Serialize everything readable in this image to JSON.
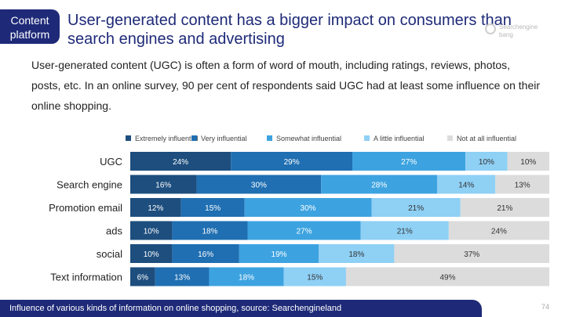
{
  "tag": {
    "label": "Content platform"
  },
  "title": "User-generated content has a bigger impact on consumers than search engines and advertising",
  "intro": "User-generated content (UGC) is often a form of word of mouth, including ratings, reviews, photos, posts, etc. In an online survey, 90 per cent of respondents said UGC had at least some influence on their online shopping.",
  "watermark": {
    "text": "Searchengine bang",
    "icon": "logo-ring-icon"
  },
  "footer": {
    "caption": "Influence of various kinds of information on online shopping, source: Searchengineland"
  },
  "page_number": "74",
  "chart_data": {
    "type": "bar",
    "orientation": "horizontal",
    "stacked": true,
    "categories": [
      "UGC",
      "Search engine",
      "Promotion email",
      "ads",
      "social",
      "Text information"
    ],
    "series": [
      {
        "name": "Extremely influential",
        "color": "#1d4e7e",
        "values": [
          24,
          16,
          12,
          10,
          10,
          6
        ]
      },
      {
        "name": "Very influential",
        "color": "#1f6fb2",
        "values": [
          29,
          30,
          15,
          18,
          16,
          13
        ]
      },
      {
        "name": "Somewhat influential",
        "color": "#3da3e0",
        "values": [
          27,
          28,
          30,
          27,
          19,
          18
        ]
      },
      {
        "name": "A little influential",
        "color": "#8fd0f5",
        "values": [
          10,
          14,
          21,
          21,
          18,
          15
        ]
      },
      {
        "name": "Not at all influential",
        "color": "#dcdcdc",
        "values": [
          10,
          13,
          21,
          24,
          37,
          49
        ]
      }
    ],
    "value_suffix": "%",
    "legend_position": "top",
    "grid": false
  }
}
